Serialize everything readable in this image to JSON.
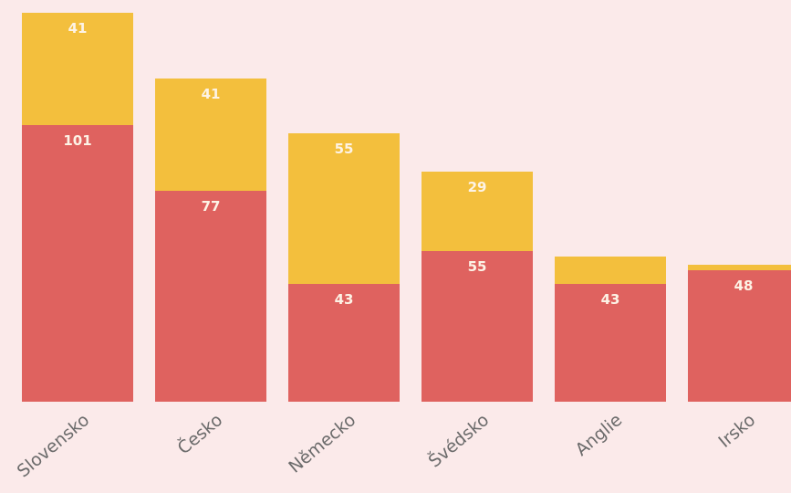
{
  "chart_data": {
    "type": "bar",
    "stacked": true,
    "categories": [
      "Slovensko",
      "Česko",
      "Německo",
      "Švédsko",
      "Anglie",
      "Irsko"
    ],
    "series": [
      {
        "color": "#df625f",
        "values": [
          101,
          77,
          43,
          55,
          43,
          48
        ],
        "labels": [
          "101",
          "77",
          "43",
          "55",
          "43",
          "48"
        ]
      },
      {
        "color": "#f3bf3d",
        "values": [
          41,
          41,
          55,
          29,
          10,
          2
        ],
        "labels": [
          "41",
          "41",
          "55",
          "29",
          "",
          ""
        ]
      }
    ],
    "ylim": [
      0,
      142
    ],
    "grid": false,
    "legend": "none",
    "title": "",
    "xlabel": "",
    "ylabel": ""
  },
  "colors": {
    "background": "#fbeaea",
    "value_label": "#fdf3e6",
    "tick_label": "#6b6b6b"
  }
}
